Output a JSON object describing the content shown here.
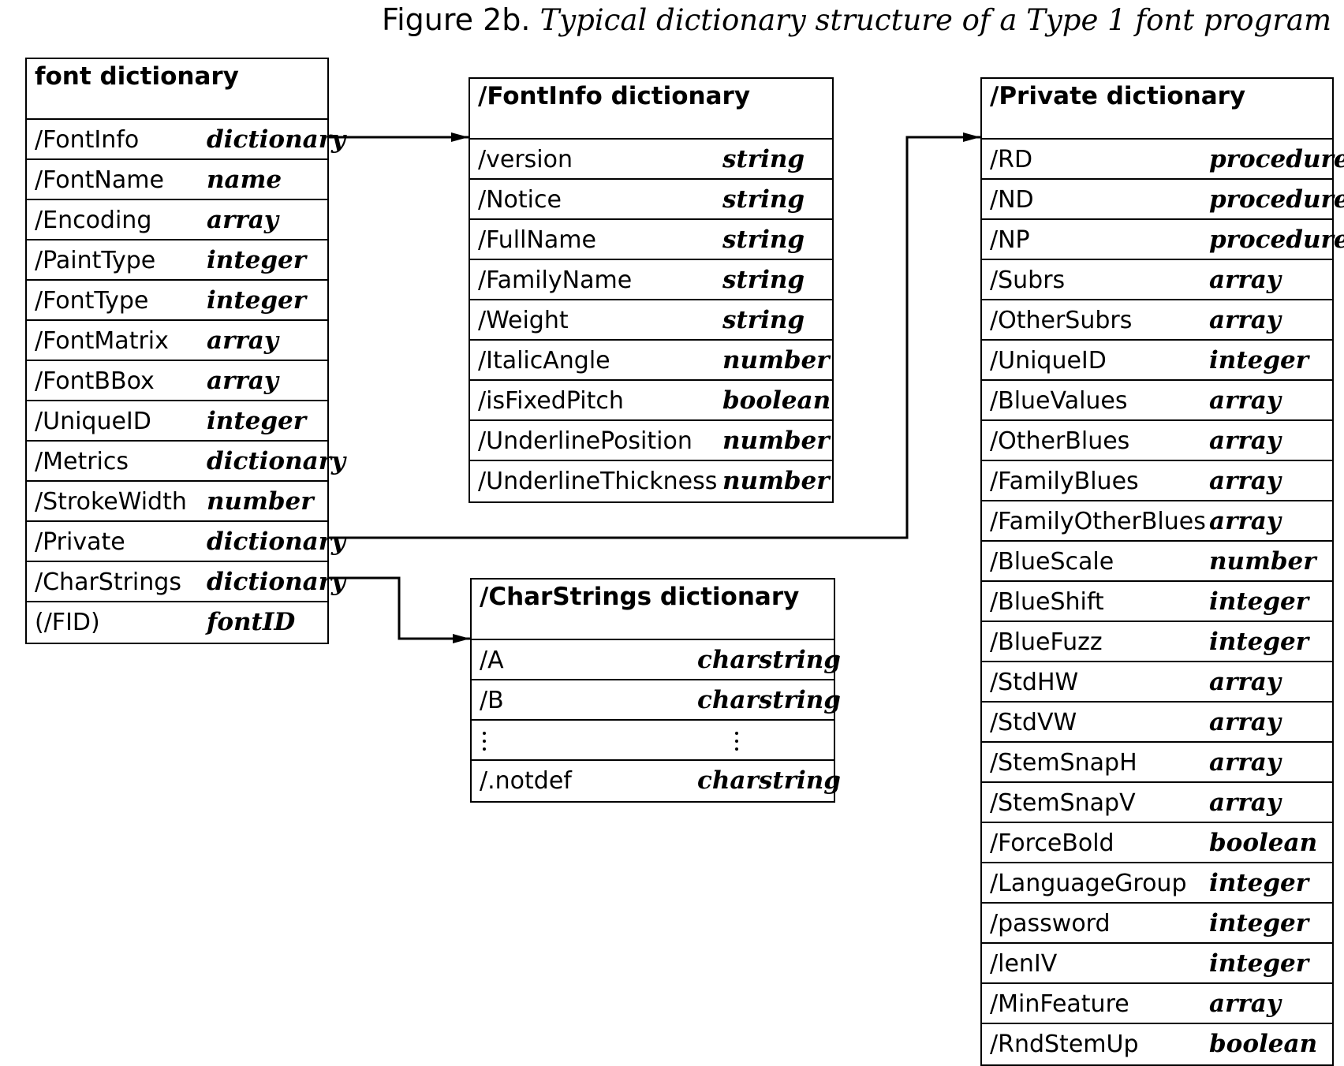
{
  "title": {
    "lead": "Figure 2b.",
    "italic": "Typical dictionary structure of a Type 1 font program"
  },
  "font_dict": {
    "title": "font dictionary",
    "rows": [
      {
        "key": "/FontInfo",
        "type": "dictionary"
      },
      {
        "key": "/FontName",
        "type": "name"
      },
      {
        "key": "/Encoding",
        "type": "array"
      },
      {
        "key": "/PaintType",
        "type": "integer"
      },
      {
        "key": "/FontType",
        "type": "integer"
      },
      {
        "key": "/FontMatrix",
        "type": "array"
      },
      {
        "key": "/FontBBox",
        "type": "array"
      },
      {
        "key": "/UniqueID",
        "type": "integer"
      },
      {
        "key": "/Metrics",
        "type": "dictionary"
      },
      {
        "key": "/StrokeWidth",
        "type": "number"
      },
      {
        "key": "/Private",
        "type": "dictionary"
      },
      {
        "key": "/CharStrings",
        "type": "dictionary"
      },
      {
        "key": "(/FID)",
        "type": "fontID"
      }
    ]
  },
  "fontinfo_dict": {
    "title": "/FontInfo dictionary",
    "rows": [
      {
        "key": "/version",
        "type": "string"
      },
      {
        "key": "/Notice",
        "type": "string"
      },
      {
        "key": "/FullName",
        "type": "string"
      },
      {
        "key": "/FamilyName",
        "type": "string"
      },
      {
        "key": "/Weight",
        "type": "string"
      },
      {
        "key": "/ItalicAngle",
        "type": "number"
      },
      {
        "key": "/isFixedPitch",
        "type": "boolean"
      },
      {
        "key": "/UnderlinePosition",
        "type": "number"
      },
      {
        "key": "/UnderlineThickness",
        "type": "number"
      }
    ]
  },
  "charstrings_dict": {
    "title": "/CharStrings dictionary",
    "rows": [
      {
        "key": "/A",
        "type": "charstring"
      },
      {
        "key": "/B",
        "type": "charstring"
      },
      {
        "key": "",
        "type": "",
        "ellipsis": true
      },
      {
        "key": "/.notdef",
        "type": "charstring"
      }
    ]
  },
  "private_dict": {
    "title": "/Private dictionary",
    "rows": [
      {
        "key": "/RD",
        "type": "procedure"
      },
      {
        "key": "/ND",
        "type": "procedure"
      },
      {
        "key": "/NP",
        "type": "procedure"
      },
      {
        "key": "/Subrs",
        "type": "array"
      },
      {
        "key": "/OtherSubrs",
        "type": "array"
      },
      {
        "key": "/UniqueID",
        "type": "integer"
      },
      {
        "key": "/BlueValues",
        "type": "array"
      },
      {
        "key": "/OtherBlues",
        "type": "array"
      },
      {
        "key": "/FamilyBlues",
        "type": "array"
      },
      {
        "key": "/FamilyOtherBlues",
        "type": "array"
      },
      {
        "key": "/BlueScale",
        "type": "number"
      },
      {
        "key": "/BlueShift",
        "type": "integer"
      },
      {
        "key": "/BlueFuzz",
        "type": "integer"
      },
      {
        "key": "/StdHW",
        "type": "array"
      },
      {
        "key": "/StdVW",
        "type": "array"
      },
      {
        "key": "/StemSnapH",
        "type": "array"
      },
      {
        "key": "/StemSnapV",
        "type": "array"
      },
      {
        "key": "/ForceBold",
        "type": "boolean"
      },
      {
        "key": "/LanguageGroup",
        "type": "integer"
      },
      {
        "key": "/password",
        "type": "integer"
      },
      {
        "key": "/lenIV",
        "type": "integer"
      },
      {
        "key": "/MinFeature",
        "type": "array"
      },
      {
        "key": "/RndStemUp",
        "type": "boolean"
      }
    ]
  }
}
